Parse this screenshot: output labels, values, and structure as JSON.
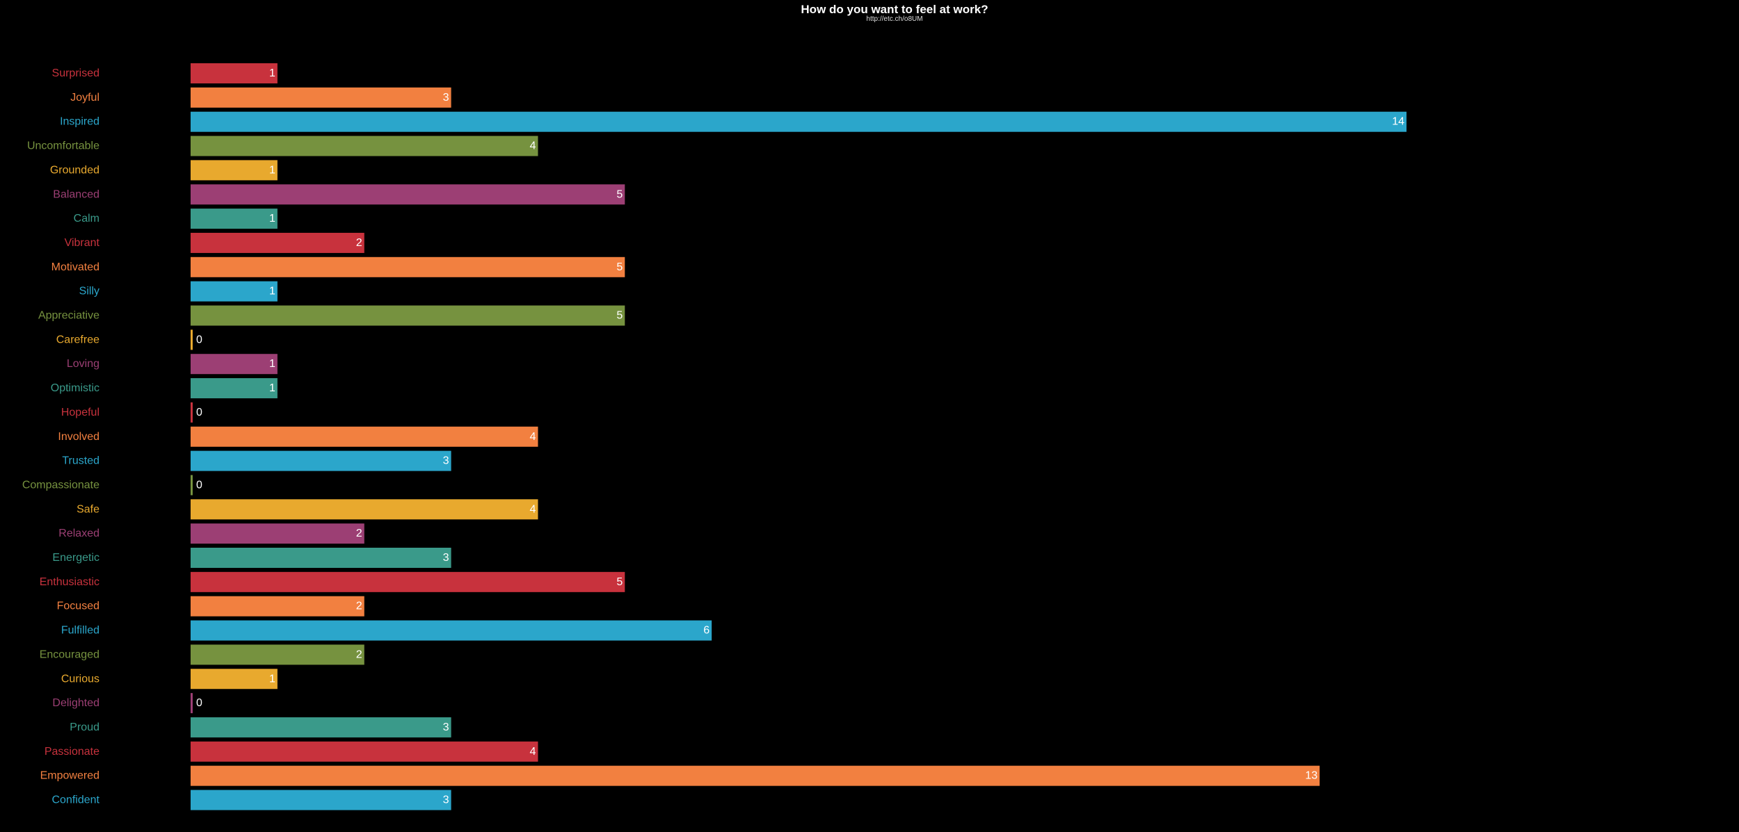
{
  "chart_data": {
    "type": "bar",
    "orientation": "horizontal",
    "title": "How do you want to feel at work?",
    "subtitle": "http://etc.ch/o8UM",
    "xlim": [
      0,
      14
    ],
    "grid": false,
    "legend": "none",
    "categories": [
      "Surprised",
      "Joyful",
      "Inspired",
      "Uncomfortable",
      "Grounded",
      "Balanced",
      "Calm",
      "Vibrant",
      "Motivated",
      "Silly",
      "Appreciative",
      "Carefree",
      "Loving",
      "Optimistic",
      "Hopeful",
      "Involved",
      "Trusted",
      "Compassionate",
      "Safe",
      "Relaxed",
      "Energetic",
      "Enthusiastic",
      "Focused",
      "Fulfilled",
      "Encouraged",
      "Curious",
      "Delighted",
      "Proud",
      "Passionate",
      "Empowered",
      "Confident"
    ],
    "values": [
      1,
      3,
      14,
      4,
      1,
      5,
      1,
      2,
      5,
      1,
      5,
      0,
      1,
      1,
      0,
      4,
      3,
      0,
      4,
      2,
      3,
      5,
      2,
      6,
      2,
      1,
      0,
      3,
      4,
      13,
      3
    ],
    "colors": [
      "#c8323d",
      "#f28040",
      "#2ba6cb",
      "#76923f",
      "#e8a92e",
      "#9c3f74",
      "#3a9a8a"
    ]
  }
}
